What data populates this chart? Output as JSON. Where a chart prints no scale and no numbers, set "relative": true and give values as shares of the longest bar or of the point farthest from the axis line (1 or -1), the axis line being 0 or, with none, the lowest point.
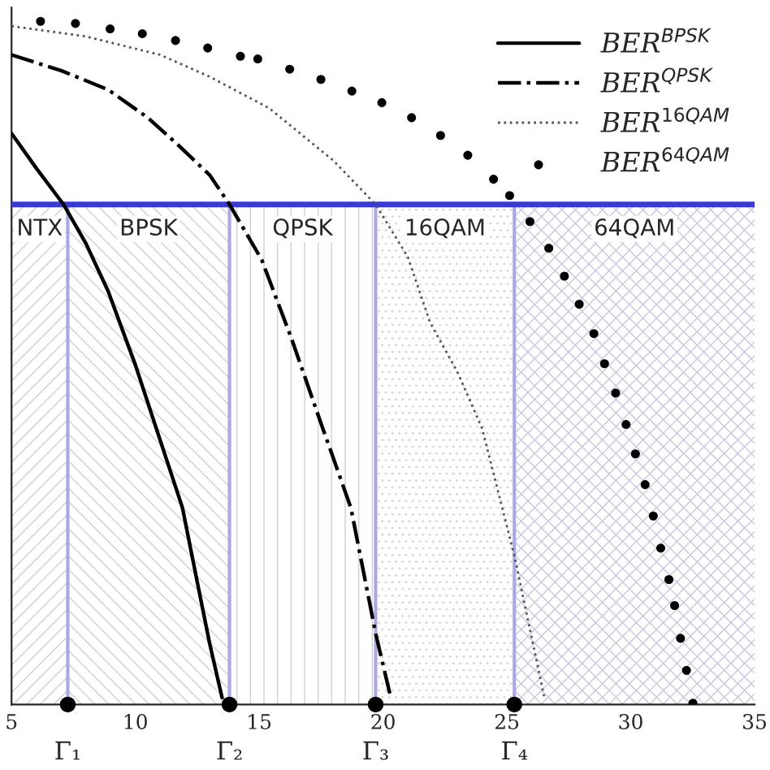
{
  "chart_data": {
    "type": "line",
    "relative": true,
    "xlim": [
      5,
      35
    ],
    "xticks": [
      5,
      10,
      15,
      20,
      25,
      30,
      35
    ],
    "series": [
      {
        "name": "BER$^{BPSK}$",
        "color": "#000000",
        "line_style": "solid",
        "x": [
          5,
          6,
          7.1,
          8,
          8.9,
          10,
          11,
          11.9,
          12.5,
          13,
          13.5
        ],
        "values": [
          0.836,
          0.785,
          0.732,
          0.675,
          0.605,
          0.497,
          0.387,
          0.288,
          0.179,
          0.089,
          0.01
        ]
      },
      {
        "name": "BER$^{QPSK}$",
        "color": "#000000",
        "line_style": "dashdot",
        "x": [
          5,
          7,
          8.9,
          10.5,
          11.7,
          13,
          13.8,
          15.1,
          16.3,
          17.5,
          18.7,
          19.7,
          20.3
        ],
        "values": [
          0.951,
          0.928,
          0.9,
          0.859,
          0.82,
          0.775,
          0.732,
          0.651,
          0.536,
          0.411,
          0.288,
          0.104,
          0.012
        ]
      },
      {
        "name": "BER$^{16QAM}$",
        "color": "#555555",
        "line_style": "dotted",
        "x": [
          5,
          8,
          11,
          13,
          15.4,
          18,
          19.7,
          21,
          21.9,
          23,
          24,
          25.3,
          26.5
        ],
        "values": [
          0.993,
          0.978,
          0.951,
          0.919,
          0.873,
          0.796,
          0.732,
          0.655,
          0.559,
          0.487,
          0.404,
          0.218,
          0.012
        ]
      },
      {
        "name": "BER$^{64QAM}$",
        "color": "#000000",
        "type": "scatter",
        "marker": "circle",
        "x": [
          6.17,
          7.58,
          8.98,
          10.28,
          11.62,
          12.92,
          14.24,
          14.94,
          16.23,
          17.49,
          18.74,
          19.95,
          21.15,
          22.32,
          23.42,
          24.46,
          25.11,
          25.93,
          26.69,
          27.32,
          27.92,
          28.51,
          28.94,
          29.39,
          29.81,
          30.19,
          30.58,
          30.91,
          31.21,
          31.54,
          31.77,
          32.01,
          32.25,
          32.51
        ],
        "values": [
          1.0,
          0.997,
          0.989,
          0.982,
          0.972,
          0.961,
          0.949,
          0.945,
          0.93,
          0.915,
          0.898,
          0.881,
          0.859,
          0.833,
          0.804,
          0.769,
          0.745,
          0.707,
          0.668,
          0.627,
          0.586,
          0.543,
          0.499,
          0.456,
          0.41,
          0.367,
          0.322,
          0.276,
          0.229,
          0.183,
          0.145,
          0.097,
          0.05,
          0.002
        ]
      }
    ],
    "ref_lines": [
      {
        "axis": "y",
        "value": 0.732,
        "color": "#3a3ad6"
      },
      {
        "axis": "x",
        "value": 7.27,
        "label": "Γ₁",
        "color": "#a9a9e6"
      },
      {
        "axis": "x",
        "value": 13.8,
        "label": "Γ₂",
        "color": "#a9a9e6"
      },
      {
        "axis": "x",
        "value": 19.7,
        "label": "Γ₃",
        "color": "#a9a9e6"
      },
      {
        "axis": "x",
        "value": 25.3,
        "label": "Γ₄",
        "color": "#a9a9e6"
      }
    ],
    "bands": [
      {
        "axis": "x",
        "from": 5,
        "to": 7.27,
        "label": "NTX",
        "color": "#d0d0d0"
      },
      {
        "axis": "x",
        "from": 7.27,
        "to": 13.8,
        "label": "BPSK",
        "color": "#d0d0d0"
      },
      {
        "axis": "x",
        "from": 13.8,
        "to": 19.7,
        "label": "QPSK",
        "color": "#d0d0d0"
      },
      {
        "axis": "x",
        "from": 19.7,
        "to": 25.3,
        "label": "16QAM",
        "color": "#d8d8d8"
      },
      {
        "axis": "x",
        "from": 25.3,
        "to": 35,
        "label": "64QAM",
        "color": "#c8c8dc"
      }
    ],
    "legend": "top right",
    "grid": false
  }
}
